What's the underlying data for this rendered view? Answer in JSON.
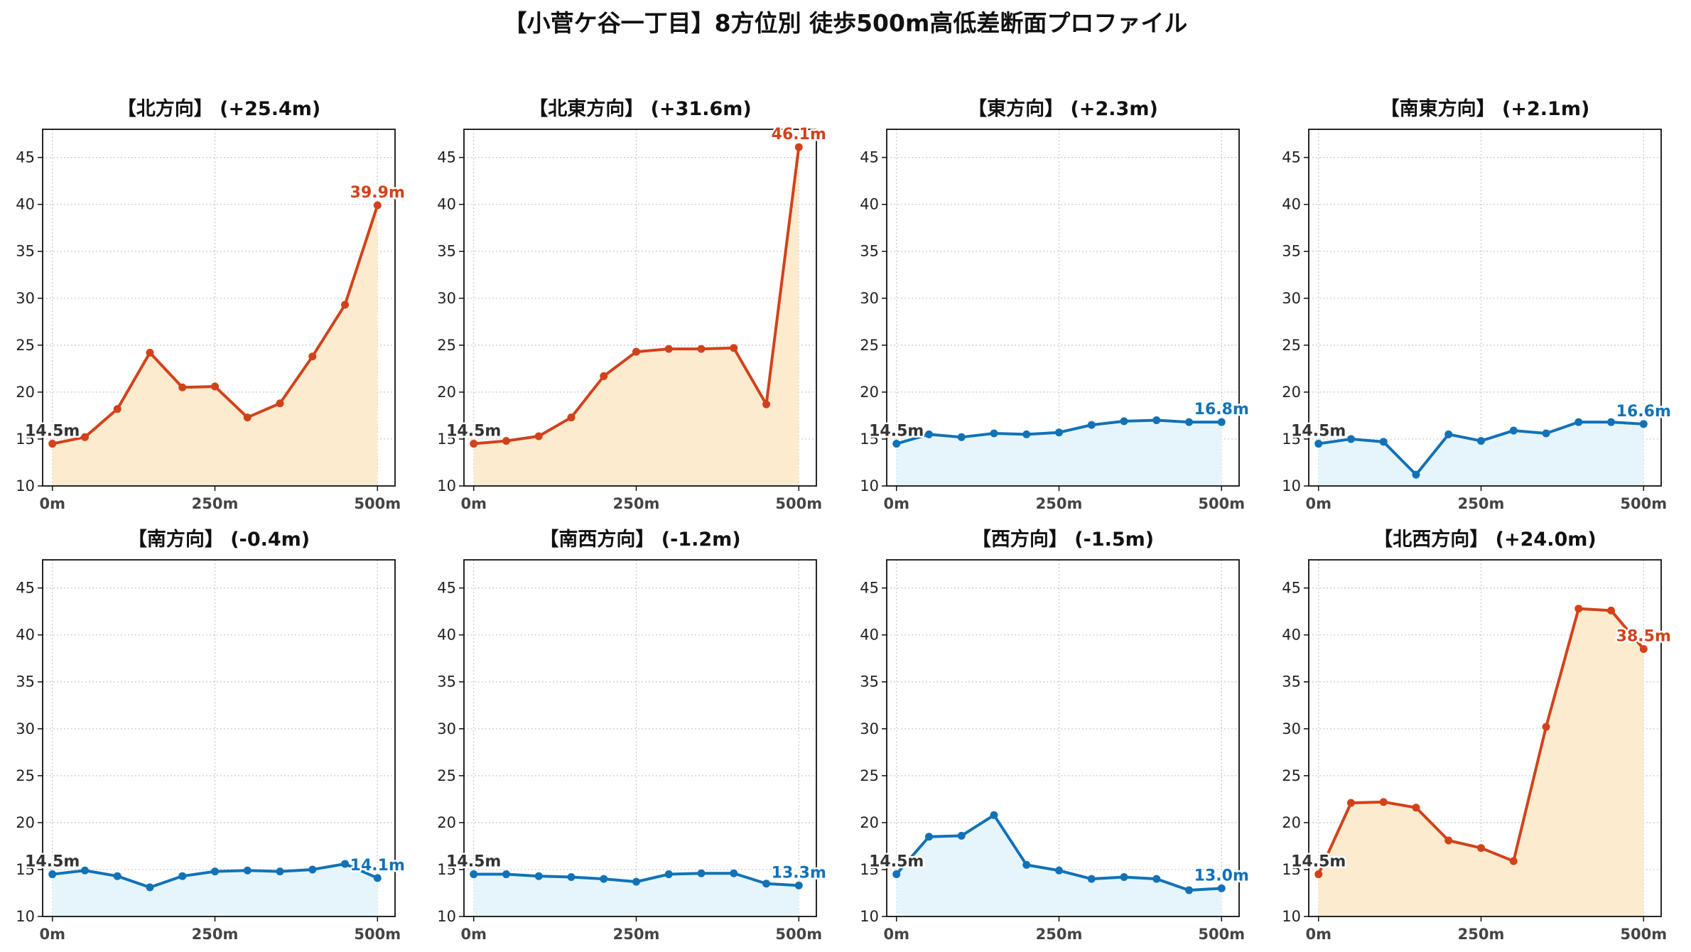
{
  "title": "【小菅ケ谷一丁目】8方位別 徒歩500m高低差断面プロファイル",
  "colors": {
    "up_line": "#d2421a",
    "up_fill": "#fdebd0",
    "down_line": "#1172b7",
    "down_fill": "#e6f5fb",
    "start_label": "#333333",
    "grid": "#c8c8c8"
  },
  "chart_data": [
    {
      "type": "area",
      "title": "【北方向】 (+25.4m)",
      "trend": "up",
      "x": [
        0,
        50,
        100,
        150,
        200,
        250,
        300,
        350,
        400,
        450,
        500
      ],
      "values": [
        14.5,
        15.2,
        18.2,
        24.2,
        20.5,
        20.6,
        17.3,
        18.8,
        23.8,
        29.3,
        39.9
      ],
      "start_label": "14.5m",
      "end_label": "39.9m"
    },
    {
      "type": "area",
      "title": "【北東方向】 (+31.6m)",
      "trend": "up",
      "x": [
        0,
        50,
        100,
        150,
        200,
        250,
        300,
        350,
        400,
        450,
        500
      ],
      "values": [
        14.5,
        14.8,
        15.3,
        17.3,
        21.7,
        24.3,
        24.6,
        24.6,
        24.7,
        18.7,
        46.1
      ],
      "start_label": "14.5m",
      "end_label": "46.1m"
    },
    {
      "type": "area",
      "title": "【東方向】 (+2.3m)",
      "trend": "down",
      "x": [
        0,
        50,
        100,
        150,
        200,
        250,
        300,
        350,
        400,
        450,
        500
      ],
      "values": [
        14.5,
        15.5,
        15.2,
        15.6,
        15.5,
        15.7,
        16.5,
        16.9,
        17.0,
        16.8,
        16.8
      ],
      "start_label": "14.5m",
      "end_label": "16.8m"
    },
    {
      "type": "area",
      "title": "【南東方向】 (+2.1m)",
      "trend": "down",
      "x": [
        0,
        50,
        100,
        150,
        200,
        250,
        300,
        350,
        400,
        450,
        500
      ],
      "values": [
        14.5,
        15.0,
        14.7,
        11.2,
        15.5,
        14.8,
        15.9,
        15.6,
        16.8,
        16.8,
        16.6
      ],
      "start_label": "14.5m",
      "end_label": "16.6m"
    },
    {
      "type": "area",
      "title": "【南方向】 (-0.4m)",
      "trend": "down",
      "x": [
        0,
        50,
        100,
        150,
        200,
        250,
        300,
        350,
        400,
        450,
        500
      ],
      "values": [
        14.5,
        14.9,
        14.3,
        13.1,
        14.3,
        14.8,
        14.9,
        14.8,
        15.0,
        15.6,
        14.1
      ],
      "start_label": "14.5m",
      "end_label": "14.1m"
    },
    {
      "type": "area",
      "title": "【南西方向】 (-1.2m)",
      "trend": "down",
      "x": [
        0,
        50,
        100,
        150,
        200,
        250,
        300,
        350,
        400,
        450,
        500
      ],
      "values": [
        14.5,
        14.5,
        14.3,
        14.2,
        14.0,
        13.7,
        14.5,
        14.6,
        14.6,
        13.5,
        13.3
      ],
      "start_label": "14.5m",
      "end_label": "13.3m"
    },
    {
      "type": "area",
      "title": "【西方向】 (-1.5m)",
      "trend": "down",
      "x": [
        0,
        50,
        100,
        150,
        200,
        250,
        300,
        350,
        400,
        450,
        500
      ],
      "values": [
        14.5,
        18.5,
        18.6,
        20.8,
        15.5,
        14.9,
        14.0,
        14.2,
        14.0,
        12.8,
        13.0
      ],
      "start_label": "14.5m",
      "end_label": "13.0m"
    },
    {
      "type": "area",
      "title": "【北西方向】 (+24.0m)",
      "trend": "up",
      "x": [
        0,
        50,
        100,
        150,
        200,
        250,
        300,
        350,
        400,
        450,
        500
      ],
      "values": [
        14.5,
        22.1,
        22.2,
        21.6,
        18.1,
        17.3,
        15.9,
        30.2,
        42.8,
        42.6,
        38.5
      ],
      "start_label": "14.5m",
      "end_label": "38.5m"
    }
  ],
  "axes": {
    "ylim": [
      10,
      48
    ],
    "yticks": [
      "10",
      "15",
      "20",
      "25",
      "30",
      "35",
      "40",
      "45"
    ],
    "xlim": [
      -15,
      527
    ],
    "xtick_values": [
      0,
      250,
      500
    ],
    "xticks": [
      "0m",
      "250m",
      "500m"
    ],
    "grid": true
  }
}
